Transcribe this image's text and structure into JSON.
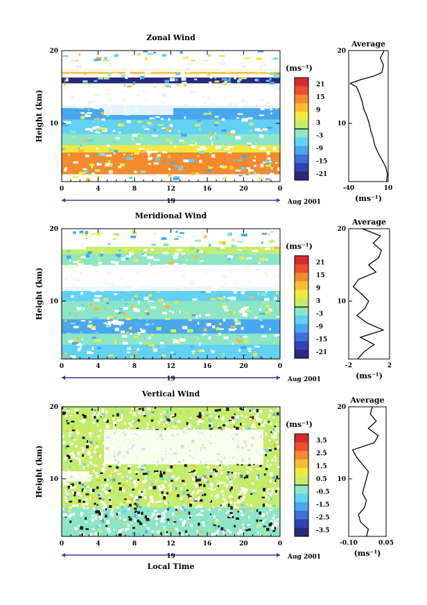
{
  "chart_data": [
    {
      "type": "heatmap",
      "title": "Zonal Wind",
      "ylabel": "Height (km)",
      "unit": "(ms⁻¹)",
      "x_ticks": [
        "0",
        "4",
        "8",
        "12",
        "16",
        "20",
        "0"
      ],
      "y_ticks": [
        "20",
        "10"
      ],
      "day": "19",
      "date": "Aug 2001",
      "colorbar_ticks": [
        "21",
        "15",
        "9",
        "3",
        "-3",
        "-9",
        "-15",
        "-21"
      ],
      "xlim": [
        0,
        24
      ],
      "ylim": [
        2,
        20
      ],
      "clim": [
        -24,
        24
      ],
      "layers": [
        {
          "z0": 3.0,
          "z1": 6.0,
          "value": 15
        },
        {
          "z0": 6.0,
          "z1": 7.0,
          "value": 6
        },
        {
          "z0": 7.0,
          "z1": 8.5,
          "value": -3
        },
        {
          "z0": 8.5,
          "z1": 10.5,
          "value": -6
        },
        {
          "z0": 10.5,
          "z1": 12.5,
          "value": -12
        },
        {
          "z0": 15.5,
          "z1": 16.3,
          "value": -21
        },
        {
          "z0": 16.8,
          "z1": 17.5,
          "value": 9
        }
      ],
      "avg_profile": {
        "title": "Average",
        "x_ticks": [
          "-40",
          "10"
        ],
        "xlabel": "(ms⁻¹)",
        "y_ticks": [
          "20",
          "10"
        ],
        "xlim": [
          -40,
          10
        ],
        "height": [
          2,
          3,
          4,
          5,
          6,
          7,
          8,
          9,
          10,
          11,
          12,
          13,
          14,
          15,
          15.5,
          16,
          16.5,
          17,
          18,
          19,
          20
        ],
        "value": [
          8,
          9,
          7,
          2,
          -3,
          -7,
          -9,
          -12,
          -14,
          -17,
          -21,
          -23,
          -26,
          -30,
          -38,
          -25,
          -8,
          2,
          4,
          0,
          5
        ]
      }
    },
    {
      "type": "heatmap",
      "title": "Meridional Wind",
      "ylabel": "Height (km)",
      "unit": "(ms⁻¹)",
      "x_ticks": [
        "0",
        "4",
        "8",
        "12",
        "16",
        "20",
        "0"
      ],
      "y_ticks": [
        "20",
        "10"
      ],
      "day": "19",
      "date": "Aug 2001",
      "colorbar_ticks": [
        "21",
        "15",
        "9",
        "3",
        "-3",
        "-9",
        "-15",
        "-21"
      ],
      "xlim": [
        0,
        24
      ],
      "ylim": [
        2,
        20
      ],
      "clim": [
        -24,
        24
      ],
      "layers": [
        {
          "z0": 2.0,
          "z1": 4.0,
          "value": -6
        },
        {
          "z0": 4.0,
          "z1": 5.5,
          "value": -3
        },
        {
          "z0": 5.5,
          "z1": 7.5,
          "value": -9
        },
        {
          "z0": 7.5,
          "z1": 10.0,
          "value": -3
        },
        {
          "z0": 10.0,
          "z1": 12.0,
          "value": -6
        },
        {
          "z0": 15.0,
          "z1": 16.5,
          "value": -3
        },
        {
          "z0": 16.5,
          "z1": 17.5,
          "value": 3
        }
      ],
      "avg_profile": {
        "title": "Average",
        "x_ticks": [
          "-2",
          "2"
        ],
        "xlabel": "(ms⁻¹)",
        "y_ticks": [
          "20",
          "10"
        ],
        "xlim": [
          -2.5,
          2
        ],
        "height": [
          2,
          3,
          4,
          5,
          6,
          7,
          8,
          9,
          10,
          11,
          12,
          13,
          14,
          15,
          16,
          17,
          18,
          19,
          20
        ],
        "value": [
          -1.5,
          -0.8,
          0.3,
          -1.2,
          1.3,
          -0.5,
          -1.6,
          -0.7,
          -0.3,
          -1.1,
          -2.0,
          -1.4,
          0.5,
          -0.3,
          0.8,
          1.1,
          0.2,
          1.0,
          -1.0
        ]
      }
    },
    {
      "type": "heatmap",
      "title": "Vertical Wind",
      "ylabel": "Height (km)",
      "xlabel": "Local Time",
      "unit": "(ms⁻¹)",
      "x_ticks": [
        "0",
        "4",
        "8",
        "12",
        "16",
        "20",
        "0"
      ],
      "y_ticks": [
        "20",
        "10"
      ],
      "day": "19",
      "date": "Aug 2001",
      "colorbar_ticks": [
        "3.5",
        "2.5",
        "1.5",
        "0.5",
        "-0.5",
        "-1.5",
        "-2.5",
        "-3.5"
      ],
      "xlim": [
        0,
        24
      ],
      "ylim": [
        2,
        20
      ],
      "clim": [
        -4,
        4
      ],
      "layers": [
        {
          "z0": 2.0,
          "z1": 6.0,
          "value": -0.5
        },
        {
          "z0": 6.0,
          "z1": 12.0,
          "value": 0.3
        },
        {
          "z0": 12.0,
          "z1": 15.0,
          "value": 0.2
        },
        {
          "z0": 15.0,
          "z1": 20.0,
          "value": 0.4
        }
      ],
      "avg_profile": {
        "title": "Average",
        "x_ticks": [
          "-0.10",
          "0.05"
        ],
        "xlabel": "(ms⁻¹)",
        "y_ticks": [
          "20",
          "10"
        ],
        "xlim": [
          -0.12,
          0.07
        ],
        "height": [
          2,
          3,
          4,
          5,
          6,
          7,
          8,
          9,
          10,
          11,
          12,
          13,
          14,
          15,
          16,
          17,
          18,
          19,
          20
        ],
        "value": [
          -0.03,
          -0.02,
          -0.06,
          -0.07,
          -0.04,
          -0.03,
          -0.05,
          -0.04,
          -0.03,
          -0.02,
          -0.05,
          -0.08,
          -0.1,
          0.01,
          0.03,
          -0.02,
          0.02,
          -0.01,
          0.0
        ]
      }
    }
  ]
}
